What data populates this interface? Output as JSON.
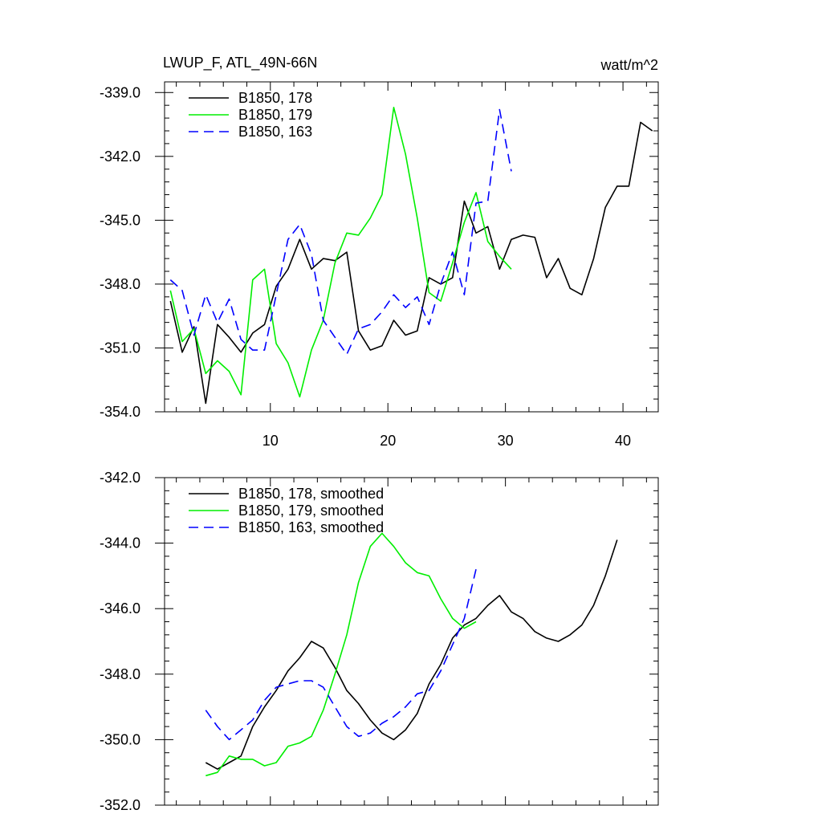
{
  "chart_data": [
    {
      "type": "line",
      "title": "LWUP_F, ATL_49N-66N",
      "units": "watt/m^2",
      "xlim": [
        1,
        43
      ],
      "ylim": [
        -354.0,
        -338.5
      ],
      "x_ticks": [
        10,
        20,
        30,
        40
      ],
      "y_ticks": [
        -354.0,
        -351.0,
        -348.0,
        -345.0,
        -342.0,
        -339.0
      ],
      "y_tick_labels": [
        "-354.0",
        "-351.0",
        "-348.0",
        "-345.0",
        "-342.0",
        "-339.0"
      ],
      "legend_position": "top-left",
      "series": [
        {
          "name": "B1850, 178",
          "color": "#000000",
          "dash": "solid",
          "x": [
            1.5,
            2.5,
            3.5,
            4.5,
            5.5,
            6.5,
            7.5,
            8.5,
            9.5,
            10.5,
            11.5,
            12.5,
            13.5,
            14.5,
            15.5,
            16.5,
            17.5,
            18.5,
            19.5,
            20.5,
            21.5,
            22.5,
            23.5,
            24.5,
            25.5,
            26.5,
            27.5,
            28.5,
            29.5,
            30.5,
            31.5,
            32.5,
            33.5,
            34.5,
            35.5,
            36.5,
            37.5,
            38.5,
            39.5,
            40.5,
            41.5,
            42.5
          ],
          "y": [
            -348.8,
            -351.2,
            -350.0,
            -353.6,
            -349.9,
            -350.5,
            -351.2,
            -350.3,
            -349.9,
            -348.1,
            -347.3,
            -345.9,
            -347.3,
            -346.8,
            -346.9,
            -346.5,
            -350.2,
            -351.1,
            -350.9,
            -349.7,
            -350.4,
            -350.2,
            -347.7,
            -348.0,
            -347.7,
            -344.1,
            -345.6,
            -345.3,
            -347.3,
            -345.9,
            -345.7,
            -345.8,
            -347.7,
            -346.8,
            -348.2,
            -348.5,
            -346.8,
            -344.4,
            -343.4,
            -343.4,
            -340.4,
            -340.8
          ]
        },
        {
          "name": "B1850, 179",
          "color": "#00ee00",
          "dash": "solid",
          "x": [
            1.5,
            2.5,
            3.5,
            4.5,
            5.5,
            6.5,
            7.5,
            8.5,
            9.5,
            10.5,
            11.5,
            12.5,
            13.5,
            14.5,
            15.5,
            16.5,
            17.5,
            18.5,
            19.5,
            20.5,
            21.5,
            22.5,
            23.5,
            24.5,
            25.5,
            26.5,
            27.5,
            28.5,
            29.5,
            30.5
          ],
          "y": [
            -348.3,
            -350.7,
            -350.1,
            -352.2,
            -351.6,
            -352.1,
            -353.2,
            -347.8,
            -347.3,
            -350.8,
            -351.7,
            -353.3,
            -351.1,
            -349.7,
            -347.0,
            -345.6,
            -345.7,
            -344.9,
            -343.8,
            -339.7,
            -341.9,
            -344.9,
            -348.4,
            -348.8,
            -347.0,
            -345.1,
            -343.7,
            -346.0,
            -346.7,
            -347.3
          ]
        },
        {
          "name": "B1850, 163",
          "color": "#0000ff",
          "dash": "dashed",
          "x": [
            1.5,
            2.5,
            3.5,
            4.5,
            5.5,
            6.5,
            7.5,
            8.5,
            9.5,
            10.5,
            11.5,
            12.5,
            13.5,
            14.5,
            15.5,
            16.5,
            17.5,
            18.5,
            19.5,
            20.5,
            21.5,
            22.5,
            23.5,
            24.5,
            25.5,
            26.5,
            27.5,
            28.5,
            29.5,
            30.5
          ],
          "y": [
            -347.8,
            -348.3,
            -350.4,
            -348.5,
            -349.8,
            -348.7,
            -350.6,
            -351.1,
            -351.1,
            -348.5,
            -345.9,
            -345.2,
            -346.6,
            -349.7,
            -350.5,
            -351.3,
            -350.1,
            -349.9,
            -349.3,
            -348.5,
            -349.1,
            -348.6,
            -349.9,
            -348.0,
            -346.5,
            -348.5,
            -344.2,
            -344.1,
            -339.8,
            -342.7
          ]
        }
      ]
    },
    {
      "type": "line",
      "title": "",
      "xlim": [
        1,
        43
      ],
      "ylim": [
        -352.0,
        -342.0
      ],
      "x_ticks": [
        10,
        20,
        30,
        40
      ],
      "y_ticks": [
        -352.0,
        -350.0,
        -348.0,
        -346.0,
        -344.0,
        -342.0
      ],
      "y_tick_labels": [
        "-352.0",
        "-350.0",
        "-348.0",
        "-346.0",
        "-344.0",
        "-342.0"
      ],
      "legend_position": "top-left",
      "series": [
        {
          "name": "B1850, 178, smoothed",
          "color": "#000000",
          "dash": "solid",
          "x": [
            4.5,
            5.5,
            6.5,
            7.5,
            8.5,
            9.5,
            10.5,
            11.5,
            12.5,
            13.5,
            14.5,
            15.5,
            16.5,
            17.5,
            18.5,
            19.5,
            20.5,
            21.5,
            22.5,
            23.5,
            24.5,
            25.5,
            26.5,
            27.5,
            28.5,
            29.5,
            30.5,
            31.5,
            32.5,
            33.5,
            34.5,
            35.5,
            36.5,
            37.5,
            38.5,
            39.5
          ],
          "y": [
            -350.7,
            -350.9,
            -350.7,
            -350.5,
            -349.6,
            -349.0,
            -348.5,
            -347.9,
            -347.5,
            -347.0,
            -347.2,
            -347.8,
            -348.5,
            -348.9,
            -349.4,
            -349.8,
            -350.0,
            -349.7,
            -349.2,
            -348.3,
            -347.7,
            -346.9,
            -346.5,
            -346.3,
            -345.9,
            -345.6,
            -346.1,
            -346.3,
            -346.7,
            -346.9,
            -347.0,
            -346.8,
            -346.5,
            -345.9,
            -345.0,
            -343.9
          ]
        },
        {
          "name": "B1850, 179, smoothed",
          "color": "#00ee00",
          "dash": "solid",
          "x": [
            4.5,
            5.5,
            6.5,
            7.5,
            8.5,
            9.5,
            10.5,
            11.5,
            12.5,
            13.5,
            14.5,
            15.5,
            16.5,
            17.5,
            18.5,
            19.5,
            20.5,
            21.5,
            22.5,
            23.5,
            24.5,
            25.5,
            26.5,
            27.5
          ],
          "y": [
            -351.1,
            -351.0,
            -350.5,
            -350.6,
            -350.6,
            -350.8,
            -350.7,
            -350.2,
            -350.1,
            -349.9,
            -349.1,
            -348.0,
            -346.8,
            -345.2,
            -344.1,
            -343.7,
            -344.1,
            -344.6,
            -344.9,
            -345.0,
            -345.7,
            -346.3,
            -346.6,
            -346.4
          ]
        },
        {
          "name": "B1850, 163, smoothed",
          "color": "#0000ff",
          "dash": "dashed",
          "x": [
            4.5,
            5.5,
            6.5,
            7.5,
            8.5,
            9.5,
            10.5,
            11.5,
            12.5,
            13.5,
            14.5,
            15.5,
            16.5,
            17.5,
            18.5,
            19.5,
            20.5,
            21.5,
            22.5,
            23.5,
            24.5,
            25.5,
            26.5,
            27.5
          ],
          "y": [
            -349.1,
            -349.6,
            -350.0,
            -349.7,
            -349.4,
            -348.8,
            -348.4,
            -348.3,
            -348.2,
            -348.2,
            -348.4,
            -349.0,
            -349.6,
            -349.9,
            -349.8,
            -349.5,
            -349.3,
            -349.0,
            -348.6,
            -348.5,
            -347.9,
            -347.1,
            -346.3,
            -344.8
          ]
        }
      ]
    }
  ]
}
